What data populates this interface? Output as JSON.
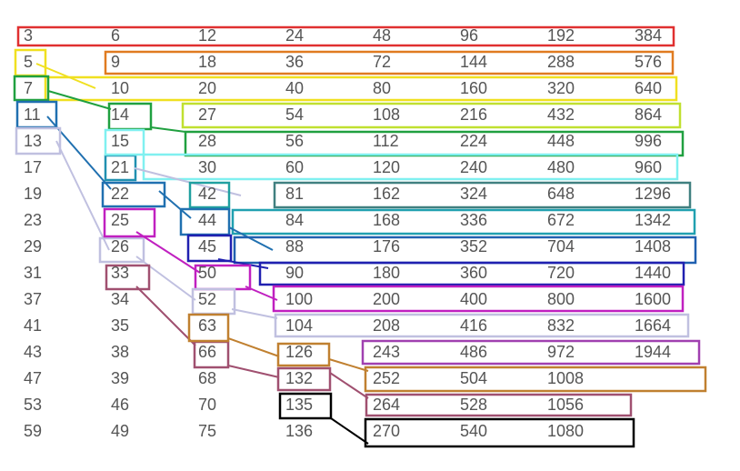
{
  "table": {
    "rows": [
      [
        3,
        6,
        12,
        24,
        48,
        96,
        192,
        384
      ],
      [
        5,
        9,
        18,
        36,
        72,
        144,
        288,
        576
      ],
      [
        7,
        10,
        20,
        40,
        80,
        160,
        320,
        640
      ],
      [
        11,
        14,
        27,
        54,
        108,
        216,
        432,
        864
      ],
      [
        13,
        15,
        28,
        56,
        112,
        224,
        448,
        996
      ],
      [
        17,
        21,
        30,
        60,
        120,
        240,
        480,
        960
      ],
      [
        19,
        22,
        42,
        81,
        162,
        324,
        648,
        1296
      ],
      [
        23,
        25,
        44,
        84,
        168,
        336,
        672,
        1342
      ],
      [
        29,
        26,
        45,
        88,
        176,
        352,
        704,
        1408
      ],
      [
        31,
        33,
        50,
        90,
        180,
        360,
        720,
        1440
      ],
      [
        37,
        34,
        52,
        100,
        200,
        400,
        800,
        1600
      ],
      [
        41,
        35,
        63,
        104,
        208,
        416,
        832,
        1664
      ],
      [
        43,
        38,
        66,
        126,
        243,
        486,
        972,
        1944
      ],
      [
        47,
        39,
        68,
        132,
        252,
        504,
        1008
      ],
      [
        53,
        46,
        70,
        135,
        264,
        528,
        1056
      ],
      [
        59,
        49,
        75,
        136,
        270,
        540,
        1080
      ]
    ]
  }
}
